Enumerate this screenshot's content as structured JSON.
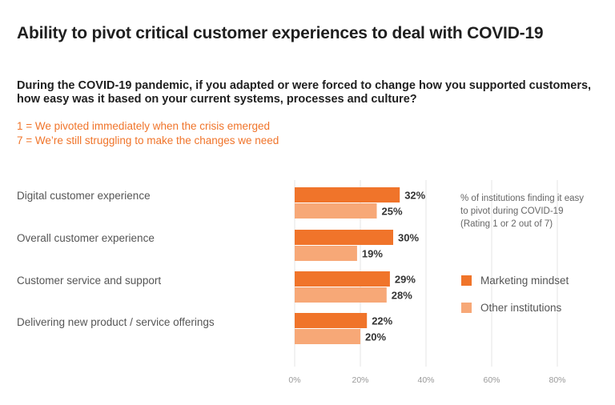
{
  "title": "Ability to pivot critical customer experiences to deal with COVID-19",
  "question": "During the COVID-19 pandemic, if you adapted or were forced to change how you supported customers, how easy was it based on your current systems, processes and culture?",
  "scale": {
    "line1": "1 = We pivoted immediately when the crisis emerged",
    "line2": "7 = We’re still struggling to make the changes we need"
  },
  "note": "% of institutions finding it easy to pivot during COVID-19 (Rating 1 or 2 out of 7)",
  "colors": {
    "marketing": "#f0742a",
    "other": "#f7a877",
    "grid": "#e6e6e6",
    "tick": "#999999",
    "label": "#333333"
  },
  "chart_data": {
    "type": "bar",
    "orientation": "horizontal",
    "categories": [
      "Digital customer experience",
      "Overall customer experience",
      "Customer service and support",
      "Delivering new product / service offerings"
    ],
    "series": [
      {
        "name": "Marketing mindset",
        "values": [
          32,
          30,
          29,
          22
        ],
        "labels": [
          "32%",
          "30%",
          "29%",
          "22%"
        ]
      },
      {
        "name": "Other institutions",
        "values": [
          25,
          19,
          28,
          20
        ],
        "labels": [
          "25%",
          "19%",
          "28%",
          "20%"
        ]
      }
    ],
    "xlim": [
      0,
      80
    ],
    "xticks": [
      0,
      20,
      40,
      60,
      80
    ],
    "xtick_labels": [
      "0%",
      "20%",
      "40%",
      "60%",
      "80%"
    ],
    "grid": true,
    "legend_position": "right"
  }
}
